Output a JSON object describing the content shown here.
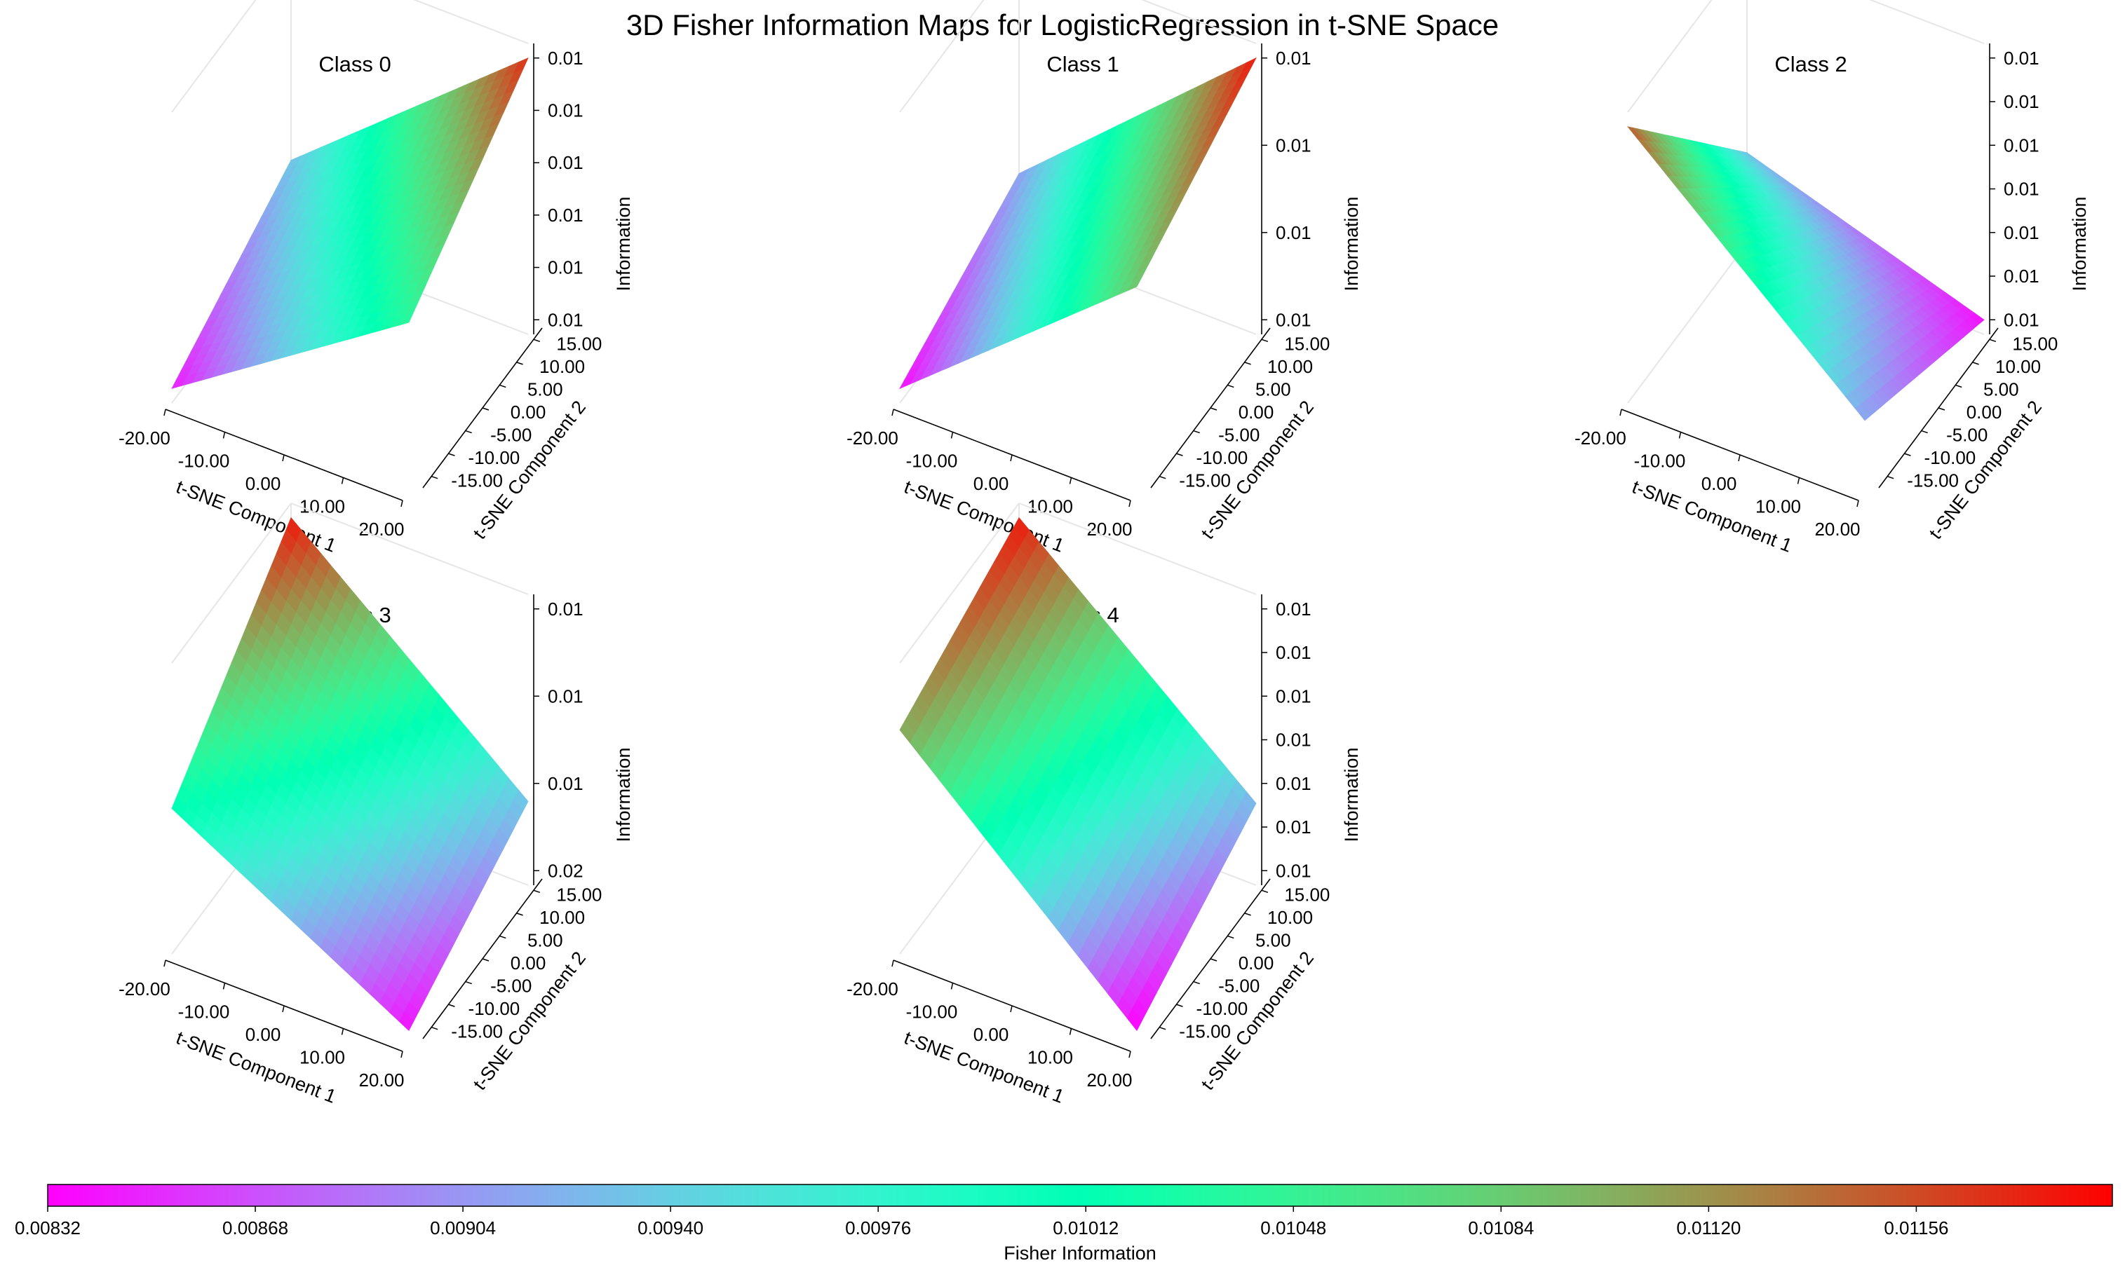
{
  "figure": {
    "title": "3D Fisher Information Maps for LogisticRegression in t-SNE Space"
  },
  "chart_data": [
    {
      "type": "surface",
      "title": "Class 0",
      "xlabel": "t-SNE Component 1",
      "ylabel": "t-SNE Component 2",
      "zlabel": "Information",
      "x_ticks": [
        "-20.00",
        "-10.00",
        "0.00",
        "10.00",
        "20.00"
      ],
      "y_ticks": [
        "-15.00",
        "-10.00",
        "-5.00",
        "0.00",
        "5.00",
        "10.00",
        "15.00"
      ],
      "z_ticks": [
        "0.01",
        "0.01",
        "0.01",
        "0.01",
        "0.01",
        "0.01"
      ],
      "corners": {
        "xmin_ymin": 0.00845,
        "xmax_ymin": 0.0104,
        "xmin_ymax": 0.0093,
        "xmax_ymax": 0.0117
      }
    },
    {
      "type": "surface",
      "title": "Class 1",
      "xlabel": "t-SNE Component 1",
      "ylabel": "t-SNE Component 2",
      "zlabel": "Information",
      "x_ticks": [
        "-20.00",
        "-10.00",
        "0.00",
        "10.00",
        "20.00"
      ],
      "y_ticks": [
        "-15.00",
        "-10.00",
        "-5.00",
        "0.00",
        "5.00",
        "10.00",
        "15.00"
      ],
      "z_ticks": [
        "0.01",
        "0.01",
        "0.01",
        "0.01"
      ],
      "corners": {
        "xmin_ymin": 0.00838,
        "xmax_ymin": 0.0109,
        "xmin_ymax": 0.0091,
        "xmax_ymax": 0.0118
      }
    },
    {
      "type": "surface",
      "title": "Class 2",
      "xlabel": "t-SNE Component 1",
      "ylabel": "t-SNE Component 2",
      "zlabel": "Information",
      "x_ticks": [
        "-20.00",
        "-10.00",
        "0.00",
        "10.00",
        "20.00"
      ],
      "y_ticks": [
        "-15.00",
        "-10.00",
        "-5.00",
        "0.00",
        "5.00",
        "10.00",
        "15.00"
      ],
      "z_ticks": [
        "0.01",
        "0.01",
        "0.01",
        "0.01",
        "0.01",
        "0.01",
        "0.01"
      ],
      "corners": {
        "xmin_ymin": 0.0115,
        "xmax_ymin": 0.0091,
        "xmin_ymax": 0.0093,
        "xmax_ymax": 0.0084
      }
    },
    {
      "type": "surface",
      "title": "Class 3",
      "xlabel": "t-SNE Component 1",
      "ylabel": "t-SNE Component 2",
      "zlabel": "Information",
      "x_ticks": [
        "-20.00",
        "-10.00",
        "0.00",
        "10.00",
        "20.00"
      ],
      "y_ticks": [
        "-15.00",
        "-10.00",
        "-5.00",
        "0.00",
        "5.00",
        "10.00",
        "15.00"
      ],
      "z_ticks": [
        "0.02",
        "0.01",
        "0.01",
        "0.01"
      ],
      "corners": {
        "xmin_ymin": 0.0101,
        "xmax_ymin": 0.0084,
        "xmin_ymax": 0.0118,
        "xmax_ymax": 0.0093
      }
    },
    {
      "type": "surface",
      "title": "Class 4",
      "xlabel": "t-SNE Component 1",
      "ylabel": "t-SNE Component 2",
      "zlabel": "Information",
      "x_ticks": [
        "-20.00",
        "-10.00",
        "0.00",
        "10.00",
        "20.00"
      ],
      "y_ticks": [
        "-15.00",
        "-10.00",
        "-5.00",
        "0.00",
        "5.00",
        "10.00",
        "15.00"
      ],
      "z_ticks": [
        "0.01",
        "0.01",
        "0.01",
        "0.01",
        "0.01",
        "0.01",
        "0.01"
      ],
      "corners": {
        "xmin_ymin": 0.0111,
        "xmax_ymin": 0.0083,
        "xmin_ymax": 0.0118,
        "xmax_ymax": 0.0092
      }
    }
  ],
  "colorbar": {
    "label": "Fisher Information",
    "colormap": "rainbow",
    "range": [
      0.00832,
      0.0119
    ],
    "ticks": [
      "0.00832",
      "0.00868",
      "0.00904",
      "0.00940",
      "0.00976",
      "0.01012",
      "0.01048",
      "0.01084",
      "0.01120",
      "0.01156"
    ]
  }
}
